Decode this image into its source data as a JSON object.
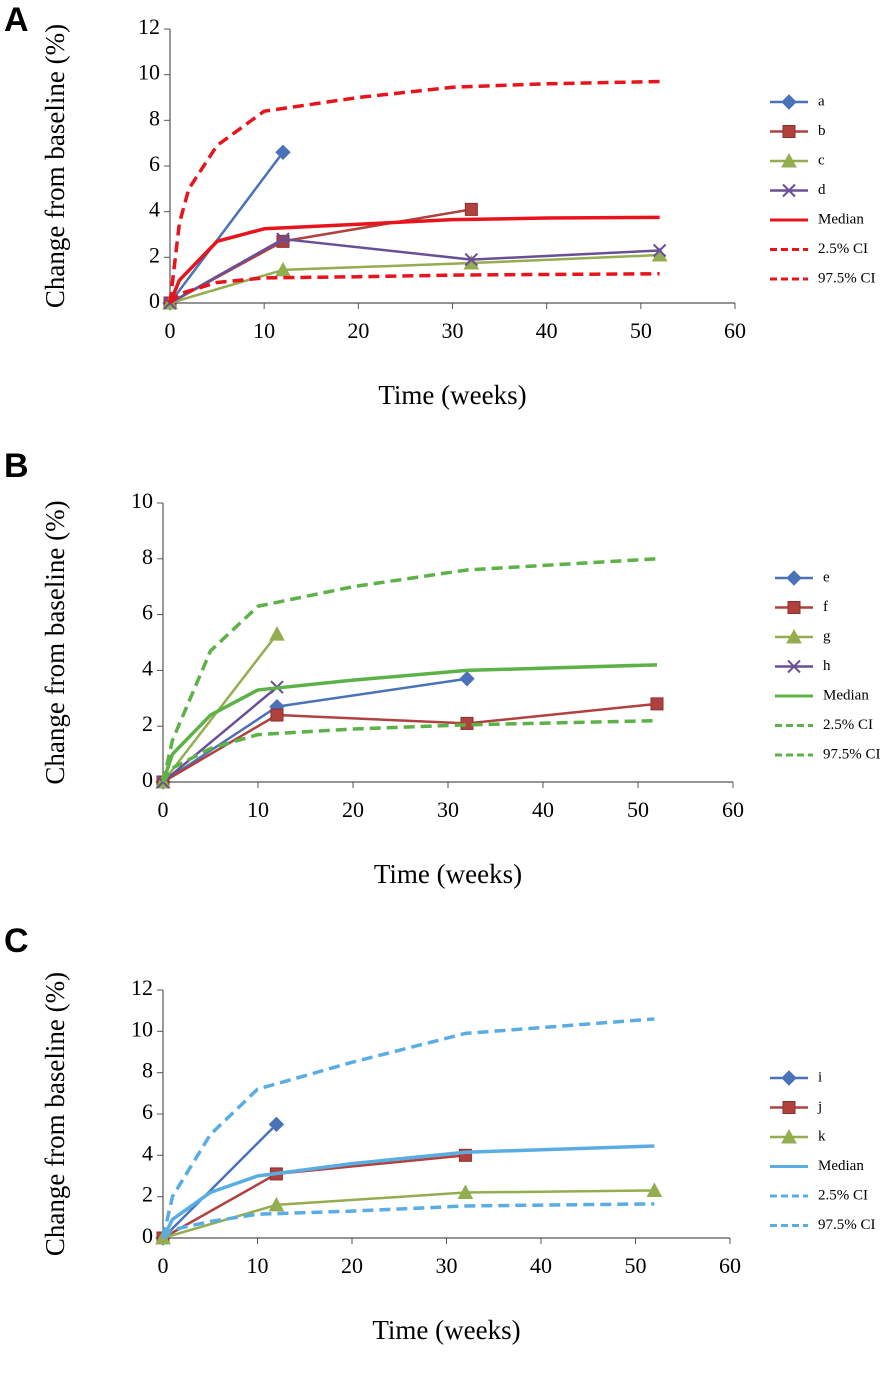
{
  "chart_data": [
    {
      "type": "line",
      "panel_label": "A",
      "x_label": "Time (weeks)",
      "y_label": "Change from baseline (%)",
      "xlim": [
        0,
        60
      ],
      "xticks": [
        0,
        10,
        20,
        30,
        40,
        50,
        60
      ],
      "ylim": [
        0,
        12
      ],
      "yticks": [
        0,
        2,
        4,
        6,
        8,
        10,
        12
      ],
      "series": [
        {
          "name": "a",
          "color": "#4a72b8",
          "marker": "diamond",
          "x": [
            0,
            12
          ],
          "values": [
            0,
            6.6
          ]
        },
        {
          "name": "b",
          "color": "#b0413e",
          "marker": "square",
          "x": [
            0,
            12,
            32
          ],
          "values": [
            0,
            2.7,
            4.1
          ]
        },
        {
          "name": "c",
          "color": "#93ad4f",
          "marker": "triangle",
          "x": [
            0,
            12,
            32,
            52
          ],
          "values": [
            0,
            1.45,
            1.75,
            2.1
          ]
        },
        {
          "name": "d",
          "color": "#6a4f96",
          "marker": "x",
          "x": [
            0,
            12,
            32,
            52
          ],
          "values": [
            0,
            2.8,
            1.9,
            2.3
          ]
        },
        {
          "name": "Median",
          "color": "#e8141b",
          "dashed": false,
          "x": [
            0,
            1,
            5,
            10,
            20,
            30,
            40,
            52
          ],
          "values": [
            0,
            1,
            2.7,
            3.25,
            3.45,
            3.65,
            3.72,
            3.75
          ]
        },
        {
          "name": "2.5% CI",
          "color": "#e8141b",
          "dashed": true,
          "x": [
            0,
            1,
            5,
            10,
            20,
            30,
            40,
            52
          ],
          "values": [
            0,
            0.4,
            0.9,
            1.1,
            1.15,
            1.22,
            1.25,
            1.28
          ]
        },
        {
          "name": "97.5% CI",
          "color": "#e8141b",
          "dashed": true,
          "x": [
            0,
            1,
            2,
            5,
            10,
            20,
            30,
            40,
            52
          ],
          "values": [
            0,
            3.5,
            5,
            6.9,
            8.4,
            9.0,
            9.45,
            9.6,
            9.7
          ]
        }
      ]
    },
    {
      "type": "line",
      "panel_label": "B",
      "x_label": "Time (weeks)",
      "y_label": "Change from baseline (%)",
      "xlim": [
        0,
        60
      ],
      "xticks": [
        0,
        10,
        20,
        30,
        40,
        50,
        60
      ],
      "ylim": [
        0,
        10
      ],
      "yticks": [
        0,
        2,
        4,
        6,
        8,
        10
      ],
      "series": [
        {
          "name": "e",
          "color": "#4a72b8",
          "marker": "diamond",
          "x": [
            0,
            12,
            32
          ],
          "values": [
            0,
            2.7,
            3.7
          ]
        },
        {
          "name": "f",
          "color": "#b0413e",
          "marker": "square",
          "x": [
            0,
            12,
            32,
            52
          ],
          "values": [
            0,
            2.4,
            2.1,
            2.8
          ]
        },
        {
          "name": "g",
          "color": "#93ad4f",
          "marker": "triangle",
          "x": [
            0,
            12
          ],
          "values": [
            0,
            5.3
          ]
        },
        {
          "name": "h",
          "color": "#6a4f96",
          "marker": "x",
          "x": [
            0,
            12
          ],
          "values": [
            0,
            3.4
          ]
        },
        {
          "name": "Median",
          "color": "#5cb247",
          "dashed": false,
          "x": [
            0,
            1,
            5,
            10,
            20,
            32,
            52
          ],
          "values": [
            0,
            1,
            2.4,
            3.3,
            3.65,
            4.0,
            4.2
          ]
        },
        {
          "name": "2.5% CI",
          "color": "#5cb247",
          "dashed": true,
          "x": [
            0,
            1,
            5,
            10,
            20,
            32,
            52
          ],
          "values": [
            0,
            0.5,
            1.2,
            1.7,
            1.9,
            2.05,
            2.2
          ]
        },
        {
          "name": "97.5% CI",
          "color": "#5cb247",
          "dashed": true,
          "x": [
            0,
            1,
            5,
            10,
            20,
            32,
            52
          ],
          "values": [
            0,
            1.5,
            4.7,
            6.3,
            7.0,
            7.6,
            8.0
          ]
        }
      ]
    },
    {
      "type": "line",
      "panel_label": "C",
      "x_label": "Time (weeks)",
      "y_label": "Change from baseline (%)",
      "xlim": [
        0,
        60
      ],
      "xticks": [
        0,
        10,
        20,
        30,
        40,
        50,
        60
      ],
      "ylim": [
        0,
        12
      ],
      "yticks": [
        0,
        2,
        4,
        6,
        8,
        10,
        12
      ],
      "series": [
        {
          "name": "i",
          "color": "#4a72b8",
          "marker": "diamond",
          "x": [
            0,
            12
          ],
          "values": [
            0,
            5.5
          ]
        },
        {
          "name": "j",
          "color": "#b0413e",
          "marker": "square",
          "x": [
            0,
            12,
            32
          ],
          "values": [
            0,
            3.1,
            4.0
          ]
        },
        {
          "name": "k",
          "color": "#93ad4f",
          "marker": "triangle",
          "x": [
            0,
            12,
            32,
            52
          ],
          "values": [
            0,
            1.6,
            2.2,
            2.3
          ]
        },
        {
          "name": "Median",
          "color": "#5aade3",
          "dashed": false,
          "x": [
            0,
            1,
            5,
            10,
            20,
            32,
            52
          ],
          "values": [
            0,
            0.9,
            2.2,
            3.0,
            3.6,
            4.15,
            4.45
          ]
        },
        {
          "name": "2.5% CI",
          "color": "#5aade3",
          "dashed": true,
          "x": [
            0,
            1,
            5,
            10,
            20,
            32,
            52
          ],
          "values": [
            0,
            0.4,
            0.8,
            1.15,
            1.3,
            1.55,
            1.65
          ]
        },
        {
          "name": "97.5% CI",
          "color": "#5aade3",
          "dashed": true,
          "x": [
            0,
            1,
            5,
            10,
            20,
            32,
            52
          ],
          "values": [
            0,
            2,
            5,
            7.2,
            8.5,
            9.9,
            10.6
          ]
        }
      ]
    }
  ]
}
